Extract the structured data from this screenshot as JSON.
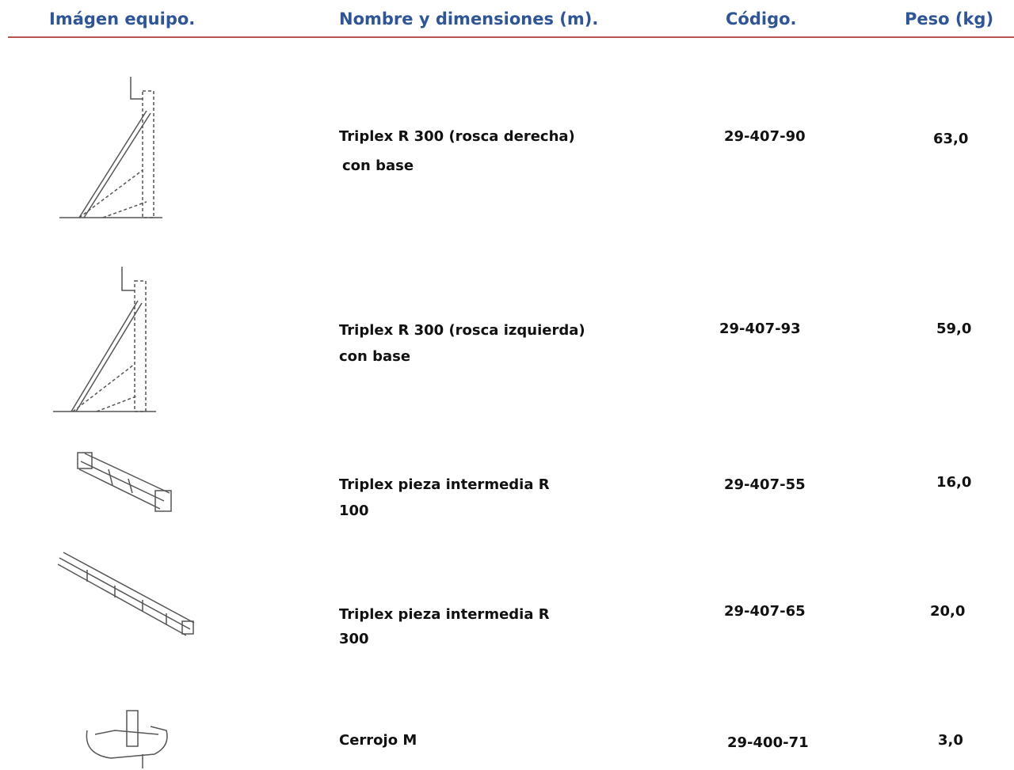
{
  "header": {
    "columns": [
      "Imágen equipo.",
      "Nombre y dimensiones (m).",
      "Código.",
      "Peso (kg)"
    ]
  },
  "table": {
    "rows": [
      {
        "name": [
          "Triplex R 300 (rosca derecha)",
          "con base"
        ],
        "code": "29-407-90",
        "weight": "63,0"
      },
      {
        "name": [
          "Triplex R 300 (rosca izquierda)",
          "con base"
        ],
        "code": "29-407-93",
        "weight": "59,0"
      },
      {
        "name": [
          "Triplex pieza intermedia R",
          "100"
        ],
        "code": "29-407-55",
        "weight": "16,0"
      },
      {
        "name": [
          "Triplex pieza intermedia R",
          "300"
        ],
        "code": "29-407-65",
        "weight": "20,0"
      },
      {
        "name": [
          "Cerrojo M"
        ],
        "code": "29-400-71",
        "weight": "3,0"
      }
    ]
  }
}
